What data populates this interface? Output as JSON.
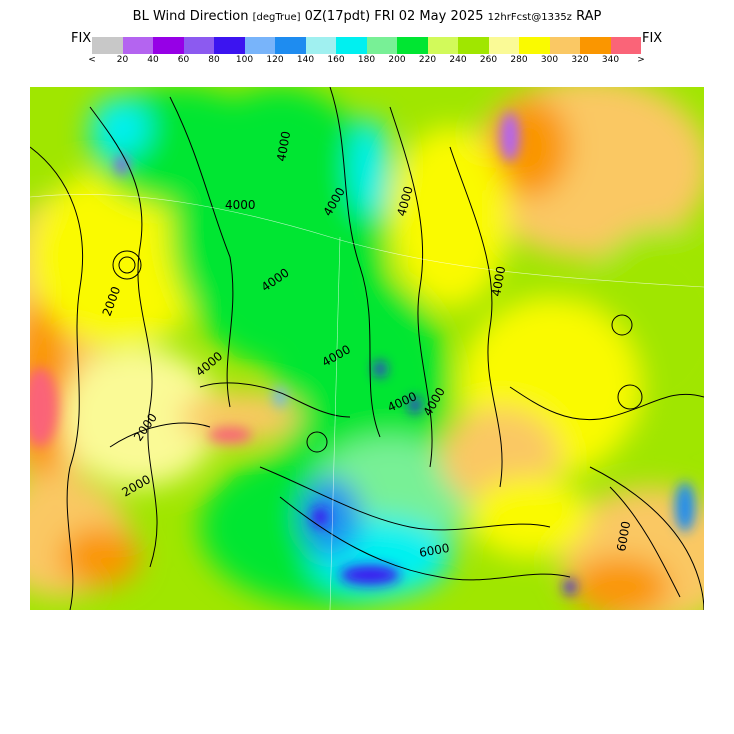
{
  "header": {
    "field": "BL Wind Direction",
    "units": "[degTrue]",
    "time": "0Z(17pdt)",
    "date": "FRI 02 May 2025",
    "forecast": "12hrFcst@1335z",
    "model": "RAP"
  },
  "colorbar": {
    "fix_left": "FIX",
    "fix_right": "FIX",
    "swatches": [
      "#c8c8c8",
      "#b464f0",
      "#9600e6",
      "#8c5af0",
      "#3c14f0",
      "#78b4fa",
      "#1e8cf0",
      "#a0f0f0",
      "#00f0f0",
      "#78f096",
      "#00e632",
      "#d2fa5a",
      "#a0e600",
      "#fafa96",
      "#fafa00",
      "#fac864",
      "#fa9600",
      "#fa6478"
    ],
    "tick_labels": [
      "<",
      "20",
      "40",
      "60",
      "80",
      "100",
      "120",
      "140",
      "160",
      "180",
      "200",
      "220",
      "240",
      "260",
      "280",
      "300",
      "320",
      "340",
      ">"
    ]
  },
  "map": {
    "contour_labels": [
      "4000",
      "4000",
      "4000",
      "4000",
      "6000",
      "2000",
      "2000",
      "4000",
      "4000",
      "6000",
      "4000",
      "4000",
      "4000",
      "2000",
      "4000"
    ]
  }
}
